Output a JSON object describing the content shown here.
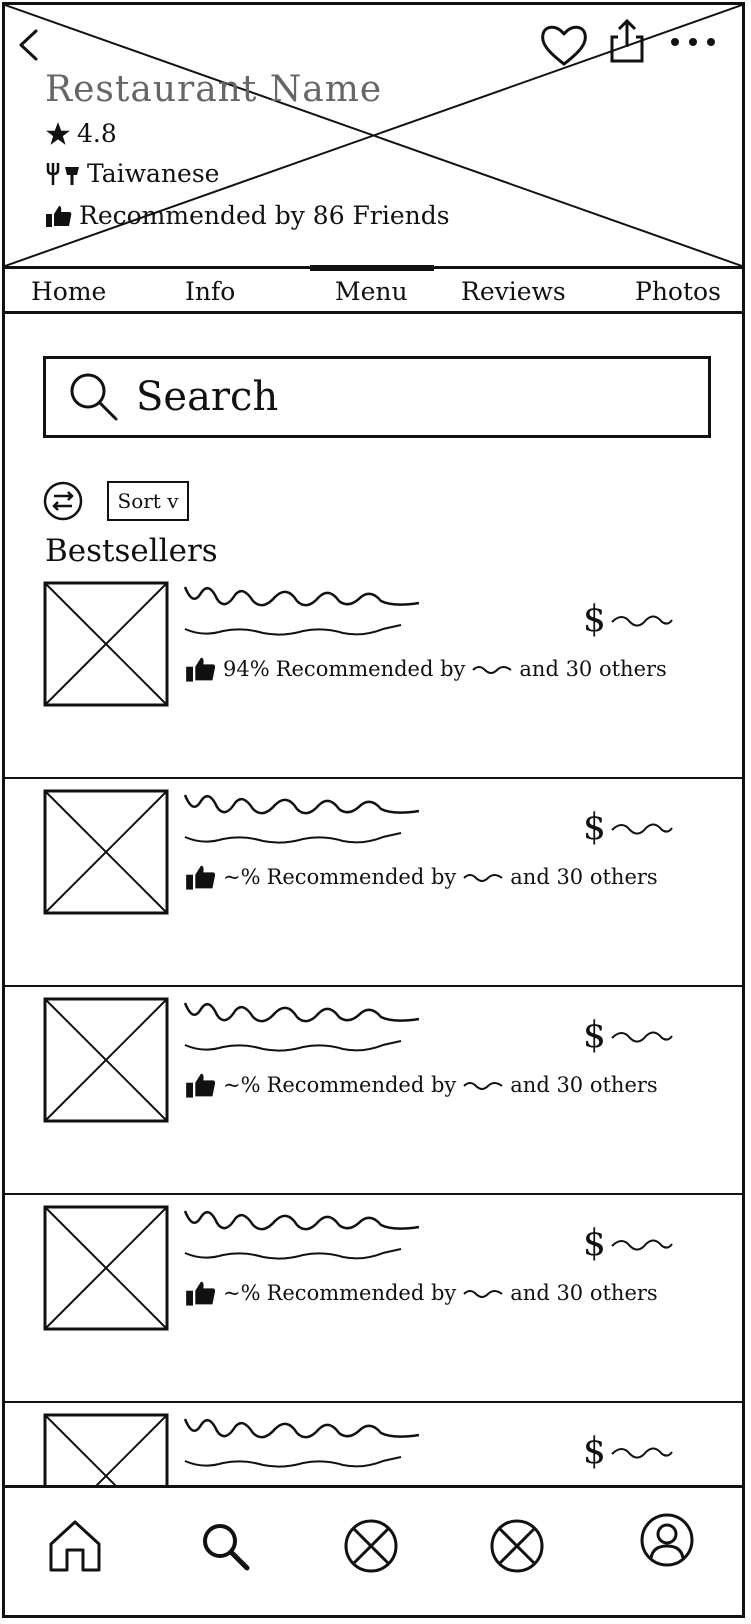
{
  "header": {
    "restaurant_name": "Restaurant Name",
    "rating": "4.8",
    "cuisine": "Taiwanese",
    "recommended_text": "Recommended by 86 Friends"
  },
  "tabs": [
    {
      "label": "Home"
    },
    {
      "label": "Info"
    },
    {
      "label": "Menu",
      "active": true
    },
    {
      "label": "Reviews"
    },
    {
      "label": "Photos"
    }
  ],
  "search": {
    "placeholder": "Search"
  },
  "filters": {
    "sort_label": "Sort v"
  },
  "section_title": "Bestsellers",
  "items": [
    {
      "price_symbol": "$",
      "percent": "94%",
      "recommended_label": "Recommended by",
      "others": "and 30 others"
    },
    {
      "price_symbol": "$",
      "percent": "~%",
      "recommended_label": "Recommended by",
      "others": "and 30 others"
    },
    {
      "price_symbol": "$",
      "percent": "~%",
      "recommended_label": "Recommended by",
      "others": "and 30 others"
    },
    {
      "price_symbol": "$",
      "percent": "~%",
      "recommended_label": "Recommended by",
      "others": "and 30 others"
    },
    {
      "price_symbol": "$",
      "percent": "",
      "recommended_label": "",
      "others": ""
    }
  ],
  "icons": {
    "top_bar": [
      "back-icon",
      "heart-icon",
      "share-icon",
      "more-icon"
    ],
    "bottom_nav": [
      "home-icon",
      "search-icon",
      "placeholder-icon",
      "placeholder-icon",
      "profile-icon"
    ]
  }
}
